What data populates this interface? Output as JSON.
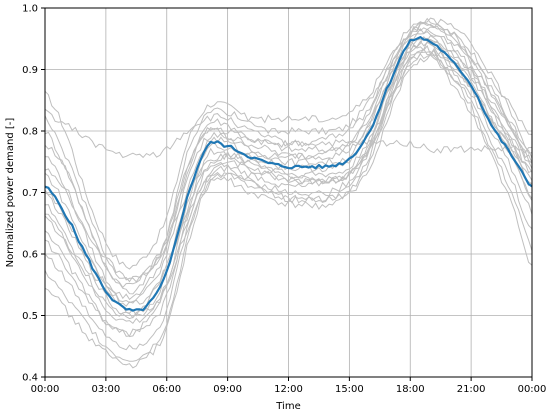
{
  "chart_data": {
    "type": "line",
    "title": "",
    "xlabel": "Time",
    "ylabel": "Normalized power demand [-]",
    "xlim": [
      0,
      24
    ],
    "ylim": [
      0.4,
      1.0
    ],
    "grid": true,
    "x_ticks": [
      {
        "value": 0,
        "label": "00:00"
      },
      {
        "value": 3,
        "label": "03:00"
      },
      {
        "value": 6,
        "label": "06:00"
      },
      {
        "value": 9,
        "label": "09:00"
      },
      {
        "value": 12,
        "label": "12:00"
      },
      {
        "value": 15,
        "label": "15:00"
      },
      {
        "value": 18,
        "label": "18:00"
      },
      {
        "value": 21,
        "label": "21:00"
      },
      {
        "value": 24,
        "label": "00:00"
      }
    ],
    "y_ticks": [
      {
        "value": 0.4,
        "label": "0.4"
      },
      {
        "value": 0.5,
        "label": "0.5"
      },
      {
        "value": 0.6,
        "label": "0.6"
      },
      {
        "value": 0.7,
        "label": "0.7"
      },
      {
        "value": 0.8,
        "label": "0.8"
      },
      {
        "value": 0.9,
        "label": "0.9"
      },
      {
        "value": 1.0,
        "label": "1.0"
      }
    ],
    "colors": {
      "mean": "#1f77b4",
      "profiles": "#bfbfbf",
      "grid": "#b0b0b0",
      "axes": "#000000"
    },
    "x": [
      0,
      1,
      2,
      3,
      4,
      5,
      6,
      7,
      8,
      9,
      10,
      11,
      12,
      13,
      14,
      15,
      16,
      17,
      18,
      19,
      20,
      21,
      22,
      23,
      24
    ],
    "mean_series": [
      0.71,
      0.665,
      0.6,
      0.54,
      0.51,
      0.515,
      0.57,
      0.69,
      0.775,
      0.775,
      0.76,
      0.748,
      0.742,
      0.742,
      0.743,
      0.755,
      0.8,
      0.88,
      0.945,
      0.945,
      0.915,
      0.875,
      0.81,
      0.76,
      0.71
    ],
    "profiles": [
      [
        0.86,
        0.8,
        0.7,
        0.62,
        0.58,
        0.6,
        0.66,
        0.78,
        0.84,
        0.84,
        0.82,
        0.8,
        0.8,
        0.8,
        0.8,
        0.81,
        0.85,
        0.91,
        0.96,
        0.97,
        0.96,
        0.93,
        0.88,
        0.84,
        0.79
      ],
      [
        0.8,
        0.74,
        0.66,
        0.58,
        0.55,
        0.57,
        0.63,
        0.74,
        0.81,
        0.81,
        0.79,
        0.78,
        0.77,
        0.77,
        0.77,
        0.78,
        0.83,
        0.9,
        0.96,
        0.98,
        0.96,
        0.92,
        0.86,
        0.8,
        0.74
      ],
      [
        0.76,
        0.71,
        0.63,
        0.56,
        0.53,
        0.55,
        0.61,
        0.73,
        0.8,
        0.79,
        0.78,
        0.77,
        0.76,
        0.76,
        0.76,
        0.77,
        0.81,
        0.89,
        0.95,
        0.96,
        0.94,
        0.9,
        0.84,
        0.78,
        0.73
      ],
      [
        0.73,
        0.68,
        0.61,
        0.55,
        0.52,
        0.54,
        0.6,
        0.72,
        0.79,
        0.79,
        0.77,
        0.76,
        0.75,
        0.75,
        0.75,
        0.76,
        0.81,
        0.89,
        0.95,
        0.96,
        0.93,
        0.89,
        0.83,
        0.78,
        0.72
      ],
      [
        0.7,
        0.65,
        0.59,
        0.53,
        0.5,
        0.51,
        0.57,
        0.7,
        0.78,
        0.78,
        0.76,
        0.75,
        0.74,
        0.74,
        0.74,
        0.75,
        0.8,
        0.88,
        0.94,
        0.95,
        0.92,
        0.88,
        0.82,
        0.77,
        0.71
      ],
      [
        0.67,
        0.62,
        0.56,
        0.51,
        0.49,
        0.5,
        0.55,
        0.68,
        0.77,
        0.77,
        0.75,
        0.74,
        0.73,
        0.73,
        0.73,
        0.74,
        0.79,
        0.87,
        0.94,
        0.95,
        0.91,
        0.87,
        0.81,
        0.76,
        0.69
      ],
      [
        0.64,
        0.59,
        0.54,
        0.49,
        0.47,
        0.48,
        0.53,
        0.66,
        0.76,
        0.76,
        0.74,
        0.73,
        0.72,
        0.72,
        0.72,
        0.73,
        0.78,
        0.87,
        0.93,
        0.94,
        0.9,
        0.86,
        0.8,
        0.74,
        0.67
      ],
      [
        0.6,
        0.56,
        0.51,
        0.47,
        0.45,
        0.46,
        0.51,
        0.64,
        0.74,
        0.74,
        0.72,
        0.71,
        0.7,
        0.7,
        0.7,
        0.72,
        0.77,
        0.86,
        0.93,
        0.93,
        0.89,
        0.85,
        0.78,
        0.72,
        0.64
      ],
      [
        0.57,
        0.53,
        0.49,
        0.45,
        0.43,
        0.44,
        0.49,
        0.62,
        0.72,
        0.73,
        0.71,
        0.7,
        0.69,
        0.69,
        0.69,
        0.71,
        0.76,
        0.85,
        0.92,
        0.93,
        0.89,
        0.84,
        0.77,
        0.7,
        0.61
      ],
      [
        0.55,
        0.51,
        0.47,
        0.44,
        0.42,
        0.43,
        0.48,
        0.61,
        0.71,
        0.72,
        0.7,
        0.69,
        0.68,
        0.68,
        0.68,
        0.7,
        0.75,
        0.84,
        0.91,
        0.92,
        0.88,
        0.83,
        0.76,
        0.68,
        0.58
      ],
      [
        0.78,
        0.74,
        0.66,
        0.58,
        0.54,
        0.56,
        0.63,
        0.76,
        0.83,
        0.83,
        0.82,
        0.82,
        0.82,
        0.82,
        0.82,
        0.83,
        0.86,
        0.92,
        0.97,
        0.98,
        0.97,
        0.94,
        0.89,
        0.83,
        0.76
      ],
      [
        0.68,
        0.63,
        0.57,
        0.52,
        0.5,
        0.52,
        0.58,
        0.66,
        0.72,
        0.74,
        0.73,
        0.72,
        0.71,
        0.71,
        0.72,
        0.73,
        0.77,
        0.85,
        0.92,
        0.94,
        0.92,
        0.89,
        0.84,
        0.79,
        0.73
      ],
      [
        0.62,
        0.58,
        0.53,
        0.49,
        0.47,
        0.49,
        0.55,
        0.64,
        0.71,
        0.73,
        0.72,
        0.7,
        0.69,
        0.69,
        0.69,
        0.7,
        0.74,
        0.83,
        0.9,
        0.92,
        0.9,
        0.87,
        0.82,
        0.76,
        0.69
      ],
      [
        0.83,
        0.81,
        0.79,
        0.77,
        0.76,
        0.76,
        0.77,
        0.8,
        0.82,
        0.82,
        0.8,
        0.79,
        0.78,
        0.78,
        0.78,
        0.78,
        0.78,
        0.78,
        0.78,
        0.77,
        0.77,
        0.77,
        0.77,
        0.77,
        0.77
      ],
      [
        0.74,
        0.7,
        0.64,
        0.59,
        0.56,
        0.57,
        0.62,
        0.7,
        0.75,
        0.76,
        0.76,
        0.76,
        0.76,
        0.76,
        0.77,
        0.78,
        0.82,
        0.9,
        0.96,
        0.97,
        0.95,
        0.92,
        0.87,
        0.81,
        0.75
      ],
      [
        0.7,
        0.66,
        0.6,
        0.55,
        0.52,
        0.53,
        0.58,
        0.67,
        0.74,
        0.76,
        0.75,
        0.74,
        0.73,
        0.72,
        0.72,
        0.73,
        0.77,
        0.85,
        0.91,
        0.93,
        0.91,
        0.87,
        0.82,
        0.77,
        0.71
      ],
      [
        0.66,
        0.62,
        0.58,
        0.54,
        0.51,
        0.51,
        0.55,
        0.65,
        0.73,
        0.75,
        0.74,
        0.73,
        0.72,
        0.72,
        0.72,
        0.73,
        0.78,
        0.86,
        0.93,
        0.95,
        0.93,
        0.9,
        0.85,
        0.8,
        0.75
      ],
      [
        0.82,
        0.76,
        0.68,
        0.6,
        0.56,
        0.57,
        0.62,
        0.74,
        0.8,
        0.8,
        0.79,
        0.78,
        0.78,
        0.78,
        0.79,
        0.8,
        0.84,
        0.91,
        0.96,
        0.97,
        0.95,
        0.91,
        0.86,
        0.81,
        0.76
      ]
    ]
  }
}
